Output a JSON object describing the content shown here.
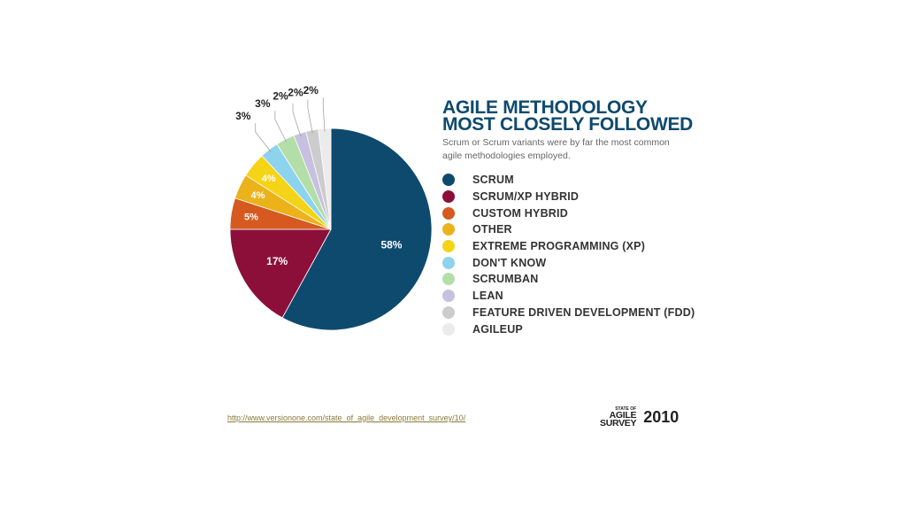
{
  "chart_data": {
    "type": "pie",
    "title": "AGILE METHODOLOGY MOST CLOSELY FOLLOWED",
    "subtitle": "Scrum or Scrum variants were by far the most common agile methodologies employed.",
    "categories": [
      "SCRUM",
      "SCRUM/XP HYBRID",
      "CUSTOM HYBRID",
      "OTHER",
      "EXTREME PROGRAMMING (XP)",
      "DON'T KNOW",
      "SCRUMBAN",
      "LEAN",
      "FEATURE DRIVEN DEVELOPMENT (FDD)",
      "AGILEUP"
    ],
    "values": [
      58,
      17,
      5,
      4,
      4,
      3,
      3,
      2,
      2,
      2
    ],
    "value_labels": [
      "58%",
      "17%",
      "5%",
      "4%",
      "4%",
      "3%",
      "3%",
      "2%",
      "2%",
      "2%"
    ],
    "colors": [
      "#0e4a6e",
      "#8c0f3a",
      "#d65a1f",
      "#ebb21a",
      "#f5d316",
      "#8dd3ee",
      "#b3dea8",
      "#c8c0e0",
      "#cccccc",
      "#ebebeb"
    ],
    "legend_position": "right"
  },
  "title_lines": [
    "AGILE METHODOLOGY",
    "MOST CLOSELY FOLLOWED"
  ],
  "source_link": "http://www.versionone.com/state_of_agile_development_survey/10/",
  "brand": {
    "small": "STATE OF",
    "line1": "AGILE",
    "line2": "SURVEY",
    "year": "2010"
  }
}
